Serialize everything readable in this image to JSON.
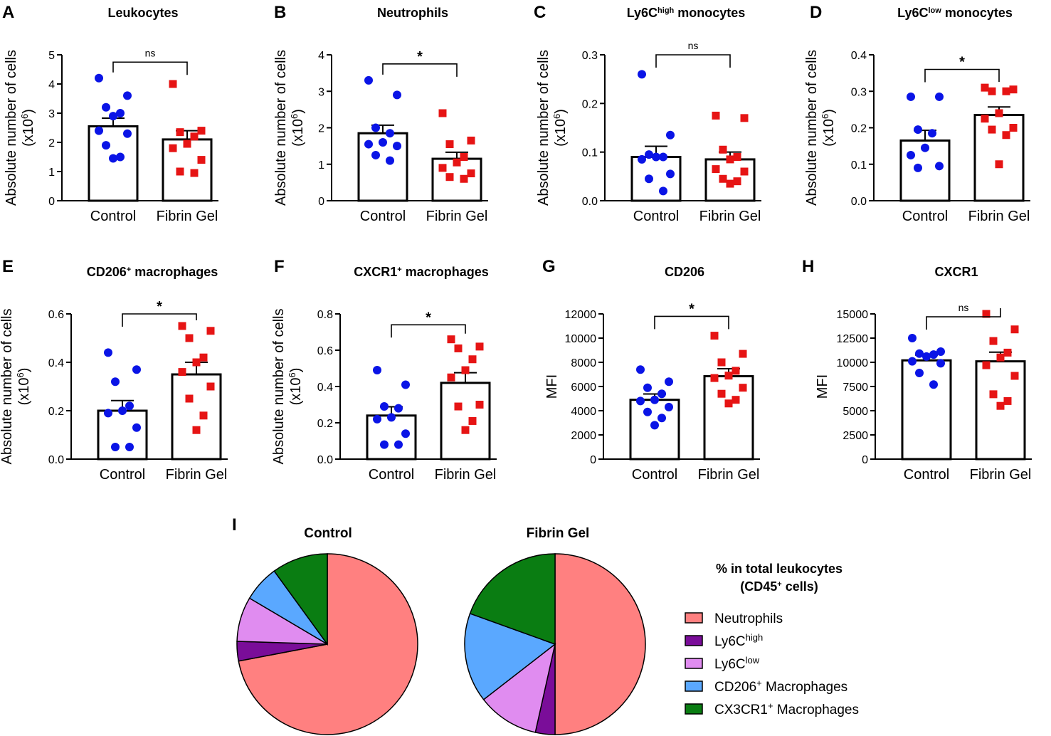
{
  "chart_data": [
    {
      "panel": "A",
      "type": "bar",
      "title": "Leukocytes",
      "title_sup": "",
      "title_rest": "",
      "ylabel": "Absolute number of cells",
      "ylabel2_base": "(x10",
      "ylabel2_sup": "6",
      "ylabel2_end": ")",
      "ylim": [
        0,
        5
      ],
      "yticks": [
        "0",
        "1",
        "2",
        "3",
        "4",
        "5"
      ],
      "categories": [
        "Control",
        "Fibrin Gel"
      ],
      "values": [
        2.55,
        2.1
      ],
      "errors": [
        0.28,
        0.3
      ],
      "points": [
        [
          4.2,
          3.6,
          3.2,
          3.0,
          2.9,
          2.4,
          2.3,
          1.9,
          1.5,
          1.45
        ],
        [
          4.0,
          2.4,
          2.35,
          2.2,
          1.95,
          1.8,
          1.4,
          1.0,
          0.95
        ]
      ],
      "significance": "ns",
      "bracket_y": 4.75
    },
    {
      "panel": "B",
      "type": "bar",
      "title": "Neutrophils",
      "title_sup": "",
      "title_rest": "",
      "ylabel": "Absolute number of cells",
      "ylabel2_base": "(x10",
      "ylabel2_sup": "6",
      "ylabel2_end": ")",
      "ylim": [
        0,
        4
      ],
      "yticks": [
        "0",
        "1",
        "2",
        "3",
        "4"
      ],
      "categories": [
        "Control",
        "Fibrin Gel"
      ],
      "values": [
        1.85,
        1.15
      ],
      "errors": [
        0.22,
        0.18
      ],
      "points": [
        [
          3.3,
          2.9,
          2.0,
          1.85,
          1.6,
          1.55,
          1.5,
          1.25,
          1.1
        ],
        [
          2.4,
          1.65,
          1.55,
          1.2,
          1.05,
          0.9,
          0.75,
          0.65,
          0.6
        ]
      ],
      "significance": "*",
      "bracket_y": 3.75
    },
    {
      "panel": "C",
      "type": "bar",
      "title": "Ly6C",
      "title_sup": "high",
      "title_rest": " monocytes",
      "ylabel": "Absolute number of cells",
      "ylabel2_base": "(x10",
      "ylabel2_sup": "6",
      "ylabel2_end": ")",
      "ylim": [
        0,
        0.3
      ],
      "yticks": [
        "0.0",
        "0.1",
        "0.2",
        "0.3"
      ],
      "categories": [
        "Control",
        "Fibrin Gel"
      ],
      "values": [
        0.09,
        0.085
      ],
      "errors": [
        0.022,
        0.015
      ],
      "points": [
        [
          0.26,
          0.135,
          0.095,
          0.09,
          0.09,
          0.085,
          0.055,
          0.045,
          0.02
        ],
        [
          0.175,
          0.17,
          0.105,
          0.09,
          0.085,
          0.065,
          0.06,
          0.045,
          0.04,
          0.035
        ]
      ],
      "significance": "ns",
      "bracket_y": 0.3
    },
    {
      "panel": "D",
      "type": "bar",
      "title": "Ly6C",
      "title_sup": "low",
      "title_rest": " monocytes",
      "ylabel": "Absolute number of cells",
      "ylabel2_base": "(x10",
      "ylabel2_sup": "6",
      "ylabel2_end": ")",
      "ylim": [
        0,
        0.4
      ],
      "yticks": [
        "0.0",
        "0.1",
        "0.2",
        "0.3",
        "0.4"
      ],
      "categories": [
        "Control",
        "Fibrin Gel"
      ],
      "values": [
        0.165,
        0.235
      ],
      "errors": [
        0.028,
        0.022
      ],
      "points": [
        [
          0.285,
          0.285,
          0.195,
          0.185,
          0.145,
          0.125,
          0.095,
          0.09
        ],
        [
          0.31,
          0.305,
          0.3,
          0.3,
          0.24,
          0.225,
          0.2,
          0.195,
          0.18,
          0.1
        ]
      ],
      "significance": "*",
      "bracket_y": 0.36
    },
    {
      "panel": "E",
      "type": "bar",
      "title": "CD206",
      "title_sup": "+",
      "title_rest": " macrophages",
      "ylabel": "Absolute number of cells",
      "ylabel2_base": "(x10",
      "ylabel2_sup": "6",
      "ylabel2_end": ")",
      "ylim": [
        0,
        0.6
      ],
      "yticks": [
        "0.0",
        "0.2",
        "0.4",
        "0.6"
      ],
      "categories": [
        "Control",
        "Fibrin Gel"
      ],
      "values": [
        0.2,
        0.35
      ],
      "errors": [
        0.042,
        0.05
      ],
      "points": [
        [
          0.44,
          0.37,
          0.32,
          0.22,
          0.2,
          0.19,
          0.13,
          0.05,
          0.05
        ],
        [
          0.55,
          0.53,
          0.5,
          0.42,
          0.4,
          0.36,
          0.3,
          0.25,
          0.18,
          0.12
        ]
      ],
      "significance": "*",
      "bracket_y": 0.6
    },
    {
      "panel": "F",
      "type": "bar",
      "title": "CXCR1",
      "title_sup": "+",
      "title_rest": " macrophages",
      "ylabel": "Absolute number of cells",
      "ylabel2_base": "(x10",
      "ylabel2_sup": "6",
      "ylabel2_end": ")",
      "ylim": [
        0,
        0.8
      ],
      "yticks": [
        "0.0",
        "0.2",
        "0.4",
        "0.6",
        "0.8"
      ],
      "categories": [
        "Control",
        "Fibrin Gel"
      ],
      "values": [
        0.24,
        0.42
      ],
      "errors": [
        0.048,
        0.056
      ],
      "points": [
        [
          0.49,
          0.41,
          0.29,
          0.28,
          0.23,
          0.22,
          0.14,
          0.08,
          0.08
        ],
        [
          0.66,
          0.62,
          0.61,
          0.55,
          0.49,
          0.45,
          0.3,
          0.29,
          0.21,
          0.16
        ]
      ],
      "significance": "*",
      "bracket_y": 0.74
    },
    {
      "panel": "G",
      "type": "bar",
      "title": "CD206",
      "title_sup": "",
      "title_rest": "",
      "ylabel": "MFI",
      "ylabel2_base": "",
      "ylabel2_sup": "",
      "ylabel2_end": "",
      "ylim": [
        0,
        12000
      ],
      "yticks": [
        "0",
        "2000",
        "4000",
        "6000",
        "8000",
        "10000",
        "12000"
      ],
      "categories": [
        "Control",
        "Fibrin Gel"
      ],
      "values": [
        4900,
        6850
      ],
      "errors": [
        480,
        620
      ],
      "points": [
        [
          7400,
          6400,
          5900,
          5400,
          4900,
          4800,
          4300,
          3900,
          3400,
          2800
        ],
        [
          10200,
          8700,
          8000,
          7300,
          6900,
          6700,
          5900,
          5400,
          4900,
          4600
        ]
      ],
      "significance": "*",
      "bracket_y": 11800
    },
    {
      "panel": "H",
      "type": "bar",
      "title": "CXCR1",
      "title_sup": "",
      "title_rest": "",
      "ylabel": "MFI",
      "ylabel2_base": "",
      "ylabel2_sup": "",
      "ylabel2_end": "",
      "ylim": [
        0,
        15000
      ],
      "yticks": [
        "0",
        "2500",
        "5000",
        "7500",
        "10000",
        "12500",
        "15000"
      ],
      "categories": [
        "Control",
        "Fibrin Gel"
      ],
      "values": [
        10200,
        10100
      ],
      "errors": [
        550,
        950
      ],
      "points": [
        [
          12500,
          11100,
          10900,
          10800,
          10600,
          10100,
          9900,
          8900,
          7700
        ],
        [
          15000,
          13400,
          12200,
          11000,
          10500,
          9700,
          8600,
          6700,
          6000,
          5500
        ]
      ],
      "significance": "ns",
      "bracket_y": 14700
    },
    {
      "panel": "I",
      "type": "pie",
      "title": "Control",
      "categories": [
        "Neutrophils",
        "Ly6Chigh",
        "Ly6Clow",
        "CD206+ Macrophages",
        "CX3CR1+ Macrophages"
      ],
      "values": [
        72,
        3.5,
        8,
        6.5,
        10
      ]
    },
    {
      "panel": "I",
      "type": "pie",
      "title": "Fibrin Gel",
      "categories": [
        "Neutrophils",
        "Ly6Chigh",
        "Ly6Clow",
        "CD206+ Macrophages",
        "CX3CR1+ Macrophages"
      ],
      "values": [
        50,
        3.5,
        11,
        16,
        19.5
      ]
    }
  ],
  "legend": {
    "title_line1": "% in total leukocytes",
    "title_line2_base": "(CD45",
    "title_line2_sup": "+",
    "title_line2_end": " cells)",
    "items": [
      {
        "base": "Neutrophils",
        "sup": "",
        "rest": ""
      },
      {
        "base": "Ly6C",
        "sup": "high",
        "rest": ""
      },
      {
        "base": "Ly6C",
        "sup": "low",
        "rest": ""
      },
      {
        "base": "CD206",
        "sup": "+",
        "rest": " Macrophages"
      },
      {
        "base": "CX3CR1",
        "sup": "+",
        "rest": " Macrophages"
      }
    ]
  },
  "colors": {
    "control": "#0a14e6",
    "fibrin": "#e61414",
    "slices": [
      "#ff8080",
      "#7a0d99",
      "#e08cf0",
      "#5aa8ff",
      "#0a7d12"
    ]
  }
}
